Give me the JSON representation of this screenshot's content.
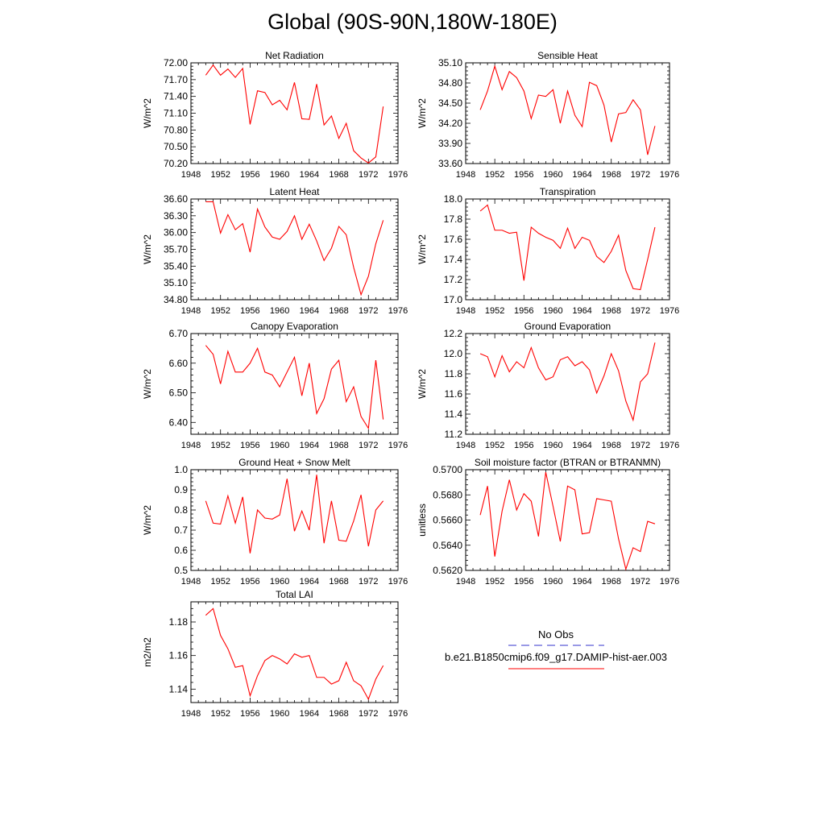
{
  "title": "Global (90S-90N,180W-180E)",
  "legend": {
    "entries": [
      {
        "label": "No Obs",
        "color": "#3333cc",
        "dash": true
      },
      {
        "label": "b.e21.B1850cmip6.f09_g17.DAMIP-hist-aer.003",
        "color": "#ff0000",
        "dash": false
      }
    ]
  },
  "chart_data": [
    {
      "type": "line",
      "title": "Net Radiation",
      "ylabel": "W/m^2",
      "xlim": [
        1948,
        1976
      ],
      "ylim": [
        70.2,
        72.0
      ],
      "xticks": [
        1948,
        1952,
        1956,
        1960,
        1964,
        1968,
        1972,
        1976
      ],
      "xtick_labels": [
        "1948",
        "1952",
        "1956",
        "1960",
        "1964",
        "1968",
        "1972",
        "1976"
      ],
      "yticks": [
        70.2,
        70.5,
        70.8,
        71.1,
        71.4,
        71.7,
        72.0
      ],
      "ytick_labels": [
        "70.20",
        "70.50",
        "70.80",
        "71.10",
        "71.40",
        "71.70",
        "72.00"
      ],
      "series": [
        {
          "color": "#ff0000",
          "x": [
            1950,
            1951,
            1952,
            1953,
            1954,
            1955,
            1956,
            1957,
            1958,
            1959,
            1960,
            1961,
            1962,
            1963,
            1964,
            1965,
            1966,
            1967,
            1968,
            1969,
            1970,
            1971,
            1972,
            1973,
            1974
          ],
          "values": [
            71.78,
            71.96,
            71.78,
            71.89,
            71.74,
            71.9,
            70.9,
            71.5,
            71.47,
            71.25,
            71.33,
            71.16,
            71.65,
            71.0,
            70.99,
            71.62,
            70.89,
            71.05,
            70.65,
            70.92,
            70.43,
            70.3,
            70.21,
            70.32,
            71.22
          ]
        }
      ]
    },
    {
      "type": "line",
      "title": "Sensible Heat",
      "ylabel": "W/m^2",
      "xlim": [
        1948,
        1976
      ],
      "ylim": [
        33.6,
        35.1
      ],
      "xticks": [
        1948,
        1952,
        1956,
        1960,
        1964,
        1968,
        1972,
        1976
      ],
      "xtick_labels": [
        "1948",
        "1952",
        "1956",
        "1960",
        "1964",
        "1968",
        "1972",
        "1976"
      ],
      "yticks": [
        33.6,
        33.9,
        34.2,
        34.5,
        34.8,
        35.1
      ],
      "ytick_labels": [
        "33.60",
        "33.90",
        "34.20",
        "34.50",
        "34.80",
        "35.10"
      ],
      "series": [
        {
          "color": "#ff0000",
          "x": [
            1950,
            1951,
            1952,
            1953,
            1954,
            1955,
            1956,
            1957,
            1958,
            1959,
            1960,
            1961,
            1962,
            1963,
            1964,
            1965,
            1966,
            1967,
            1968,
            1969,
            1970,
            1971,
            1972,
            1973,
            1974
          ],
          "values": [
            34.4,
            34.68,
            35.05,
            34.7,
            34.97,
            34.88,
            34.68,
            34.27,
            34.62,
            34.6,
            34.7,
            34.2,
            34.68,
            34.32,
            34.15,
            34.81,
            34.76,
            34.47,
            33.92,
            34.34,
            34.36,
            34.55,
            34.4,
            33.73,
            34.16
          ]
        }
      ]
    },
    {
      "type": "line",
      "title": "Latent Heat",
      "ylabel": "W/m^2",
      "xlim": [
        1948,
        1976
      ],
      "ylim": [
        34.8,
        36.6
      ],
      "xticks": [
        1948,
        1952,
        1956,
        1960,
        1964,
        1968,
        1972,
        1976
      ],
      "xtick_labels": [
        "1948",
        "1952",
        "1956",
        "1960",
        "1964",
        "1968",
        "1972",
        "1976"
      ],
      "yticks": [
        34.8,
        35.1,
        35.4,
        35.7,
        36.0,
        36.3,
        36.6
      ],
      "ytick_labels": [
        "34.80",
        "35.10",
        "35.40",
        "35.70",
        "36.00",
        "36.30",
        "36.60"
      ],
      "series": [
        {
          "color": "#ff0000",
          "x": [
            1950,
            1951,
            1952,
            1953,
            1954,
            1955,
            1956,
            1957,
            1958,
            1959,
            1960,
            1961,
            1962,
            1963,
            1964,
            1965,
            1966,
            1967,
            1968,
            1969,
            1970,
            1971,
            1972,
            1973,
            1974
          ],
          "values": [
            36.55,
            36.55,
            35.99,
            36.32,
            36.05,
            36.16,
            35.65,
            36.42,
            36.1,
            35.92,
            35.88,
            36.02,
            36.3,
            35.88,
            36.15,
            35.85,
            35.5,
            35.72,
            36.11,
            35.96,
            35.38,
            34.89,
            35.22,
            35.8,
            36.22
          ]
        }
      ]
    },
    {
      "type": "line",
      "title": "Transpiration",
      "ylabel": "W/m^2",
      "xlim": [
        1948,
        1976
      ],
      "ylim": [
        17.0,
        18.0
      ],
      "xticks": [
        1948,
        1952,
        1956,
        1960,
        1964,
        1968,
        1972,
        1976
      ],
      "xtick_labels": [
        "1948",
        "1952",
        "1956",
        "1960",
        "1964",
        "1968",
        "1972",
        "1976"
      ],
      "yticks": [
        17.0,
        17.2,
        17.4,
        17.6,
        17.8,
        18.0
      ],
      "ytick_labels": [
        "17.0",
        "17.2",
        "17.4",
        "17.6",
        "17.8",
        "18.0"
      ],
      "series": [
        {
          "color": "#ff0000",
          "x": [
            1950,
            1951,
            1952,
            1953,
            1954,
            1955,
            1956,
            1957,
            1958,
            1959,
            1960,
            1961,
            1962,
            1963,
            1964,
            1965,
            1966,
            1967,
            1968,
            1969,
            1970,
            1971,
            1972,
            1973,
            1974
          ],
          "values": [
            17.88,
            17.94,
            17.69,
            17.69,
            17.66,
            17.67,
            17.19,
            17.72,
            17.66,
            17.62,
            17.59,
            17.51,
            17.71,
            17.51,
            17.62,
            17.59,
            17.43,
            17.37,
            17.48,
            17.64,
            17.29,
            17.11,
            17.1,
            17.4,
            17.72
          ]
        }
      ]
    },
    {
      "type": "line",
      "title": "Canopy Evaporation",
      "ylabel": "W/m^2",
      "xlim": [
        1948,
        1976
      ],
      "ylim": [
        6.36,
        6.7
      ],
      "xticks": [
        1948,
        1952,
        1956,
        1960,
        1964,
        1968,
        1972,
        1976
      ],
      "xtick_labels": [
        "1948",
        "1952",
        "1956",
        "1960",
        "1964",
        "1968",
        "1972",
        "1976"
      ],
      "yticks": [
        6.4,
        6.5,
        6.6,
        6.7
      ],
      "ytick_labels": [
        "6.40",
        "6.50",
        "6.60",
        "6.70"
      ],
      "series": [
        {
          "color": "#ff0000",
          "x": [
            1950,
            1951,
            1952,
            1953,
            1954,
            1955,
            1956,
            1957,
            1958,
            1959,
            1960,
            1961,
            1962,
            1963,
            1964,
            1965,
            1966,
            1967,
            1968,
            1969,
            1970,
            1971,
            1972,
            1973,
            1974
          ],
          "values": [
            6.66,
            6.63,
            6.53,
            6.64,
            6.57,
            6.57,
            6.6,
            6.65,
            6.57,
            6.56,
            6.52,
            6.57,
            6.62,
            6.49,
            6.6,
            6.43,
            6.48,
            6.58,
            6.61,
            6.47,
            6.52,
            6.42,
            6.38,
            6.61,
            6.41
          ]
        }
      ]
    },
    {
      "type": "line",
      "title": "Ground Evaporation",
      "ylabel": "W/m^2",
      "xlim": [
        1948,
        1976
      ],
      "ylim": [
        11.2,
        12.2
      ],
      "xticks": [
        1948,
        1952,
        1956,
        1960,
        1964,
        1968,
        1972,
        1976
      ],
      "xtick_labels": [
        "1948",
        "1952",
        "1956",
        "1960",
        "1964",
        "1968",
        "1972",
        "1976"
      ],
      "yticks": [
        11.2,
        11.4,
        11.6,
        11.8,
        12.0,
        12.2
      ],
      "ytick_labels": [
        "11.2",
        "11.4",
        "11.6",
        "11.8",
        "12.0",
        "12.2"
      ],
      "series": [
        {
          "color": "#ff0000",
          "x": [
            1950,
            1951,
            1952,
            1953,
            1954,
            1955,
            1956,
            1957,
            1958,
            1959,
            1960,
            1961,
            1962,
            1963,
            1964,
            1965,
            1966,
            1967,
            1968,
            1969,
            1970,
            1971,
            1972,
            1973,
            1974
          ],
          "values": [
            12.0,
            11.97,
            11.77,
            11.98,
            11.82,
            11.92,
            11.86,
            12.06,
            11.86,
            11.74,
            11.77,
            11.94,
            11.97,
            11.88,
            11.92,
            11.84,
            11.61,
            11.78,
            12.0,
            11.83,
            11.53,
            11.34,
            11.72,
            11.8,
            12.11
          ]
        }
      ]
    },
    {
      "type": "line",
      "title": "Ground Heat + Snow Melt",
      "ylabel": "W/m^2",
      "xlim": [
        1948,
        1976
      ],
      "ylim": [
        0.5,
        1.0
      ],
      "xticks": [
        1948,
        1952,
        1956,
        1960,
        1964,
        1968,
        1972,
        1976
      ],
      "xtick_labels": [
        "1948",
        "1952",
        "1956",
        "1960",
        "1964",
        "1968",
        "1972",
        "1976"
      ],
      "yticks": [
        0.5,
        0.6,
        0.7,
        0.8,
        0.9,
        1.0
      ],
      "ytick_labels": [
        "0.5",
        "0.6",
        "0.7",
        "0.8",
        "0.9",
        "1.0"
      ],
      "series": [
        {
          "color": "#ff0000",
          "x": [
            1950,
            1951,
            1952,
            1953,
            1954,
            1955,
            1956,
            1957,
            1958,
            1959,
            1960,
            1961,
            1962,
            1963,
            1964,
            1965,
            1966,
            1967,
            1968,
            1969,
            1970,
            1971,
            1972,
            1973,
            1974
          ],
          "values": [
            0.845,
            0.735,
            0.73,
            0.87,
            0.735,
            0.865,
            0.585,
            0.8,
            0.76,
            0.755,
            0.775,
            0.955,
            0.695,
            0.795,
            0.7,
            0.975,
            0.635,
            0.845,
            0.65,
            0.645,
            0.745,
            0.875,
            0.62,
            0.8,
            0.845
          ]
        }
      ]
    },
    {
      "type": "line",
      "title": "Soil moisture factor (BTRAN or BTRANMN)",
      "ylabel": "unitless",
      "xlim": [
        1948,
        1976
      ],
      "ylim": [
        0.562,
        0.57
      ],
      "xticks": [
        1948,
        1952,
        1956,
        1960,
        1964,
        1968,
        1972,
        1976
      ],
      "xtick_labels": [
        "1948",
        "1952",
        "1956",
        "1960",
        "1964",
        "1968",
        "1972",
        "1976"
      ],
      "yticks": [
        0.562,
        0.564,
        0.566,
        0.568,
        0.57
      ],
      "ytick_labels": [
        "0.5620",
        "0.5640",
        "0.5660",
        "0.5680",
        "0.5700"
      ],
      "series": [
        {
          "color": "#ff0000",
          "x": [
            1950,
            1951,
            1952,
            1953,
            1954,
            1955,
            1956,
            1957,
            1958,
            1959,
            1960,
            1961,
            1962,
            1963,
            1964,
            1965,
            1966,
            1967,
            1968,
            1969,
            1970,
            1971,
            1972,
            1973,
            1974
          ],
          "values": [
            0.5664,
            0.5687,
            0.5631,
            0.5667,
            0.5692,
            0.5668,
            0.5681,
            0.5675,
            0.5647,
            0.5698,
            0.5671,
            0.5643,
            0.5687,
            0.5684,
            0.5649,
            0.565,
            0.5677,
            0.5676,
            0.5675,
            0.5645,
            0.5621,
            0.5638,
            0.5635,
            0.5659,
            0.5657
          ]
        }
      ]
    },
    {
      "type": "line",
      "title": "Total LAI",
      "ylabel": "m2/m2",
      "xlim": [
        1948,
        1976
      ],
      "ylim": [
        1.132,
        1.192
      ],
      "xticks": [
        1948,
        1952,
        1956,
        1960,
        1964,
        1968,
        1972,
        1976
      ],
      "xtick_labels": [
        "1948",
        "1952",
        "1956",
        "1960",
        "1964",
        "1968",
        "1972",
        "1976"
      ],
      "yticks": [
        1.14,
        1.16,
        1.18
      ],
      "ytick_labels": [
        "1.14",
        "1.16",
        "1.18"
      ],
      "series": [
        {
          "color": "#ff0000",
          "x": [
            1950,
            1951,
            1952,
            1953,
            1954,
            1955,
            1956,
            1957,
            1958,
            1959,
            1960,
            1961,
            1962,
            1963,
            1964,
            1965,
            1966,
            1967,
            1968,
            1969,
            1970,
            1971,
            1972,
            1973,
            1974
          ],
          "values": [
            1.184,
            1.188,
            1.172,
            1.164,
            1.153,
            1.154,
            1.136,
            1.148,
            1.157,
            1.16,
            1.158,
            1.155,
            1.161,
            1.159,
            1.16,
            1.147,
            1.147,
            1.143,
            1.145,
            1.156,
            1.145,
            1.142,
            1.134,
            1.146,
            1.154
          ]
        }
      ]
    }
  ]
}
